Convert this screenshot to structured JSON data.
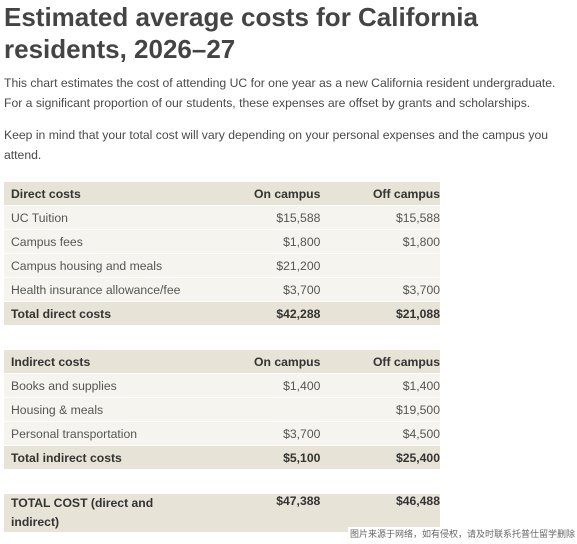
{
  "title": "Estimated average costs for California residents, 2026–27",
  "intro": "This chart estimates the cost of attending UC for one year as a new California resident undergraduate. For a significant proportion of our students, these expenses are offset by grants and scholarships.",
  "note": "Keep in mind that your total cost will vary depending on your personal expenses and the campus you attend.",
  "direct": {
    "header": [
      "Direct costs",
      "On campus",
      "Off campus"
    ],
    "rows": [
      [
        "UC Tuition",
        "$15,588",
        "$15,588"
      ],
      [
        "Campus fees",
        "$1,800",
        "$1,800"
      ],
      [
        "Campus housing and meals",
        "$21,200",
        ""
      ],
      [
        "Health insurance allowance/fee",
        "$3,700",
        "$3,700"
      ]
    ],
    "total": [
      "Total direct costs",
      "$42,288",
      "$21,088"
    ]
  },
  "indirect": {
    "header": [
      "Indirect costs",
      "On campus",
      "Off campus"
    ],
    "rows": [
      [
        "Books and supplies",
        "$1,400",
        "$1,400"
      ],
      [
        "Housing & meals",
        "",
        "$19,500"
      ],
      [
        "Personal transportation",
        "$3,700",
        "$4,500"
      ]
    ],
    "total": [
      "Total indirect costs",
      "$5,100",
      "$25,400"
    ]
  },
  "grand_total": [
    "TOTAL COST (direct and indirect)",
    "$47,388",
    "$46,488"
  ],
  "watermark": "图片来源于网络，如有侵权，请及时联系托普仕留学删除"
}
